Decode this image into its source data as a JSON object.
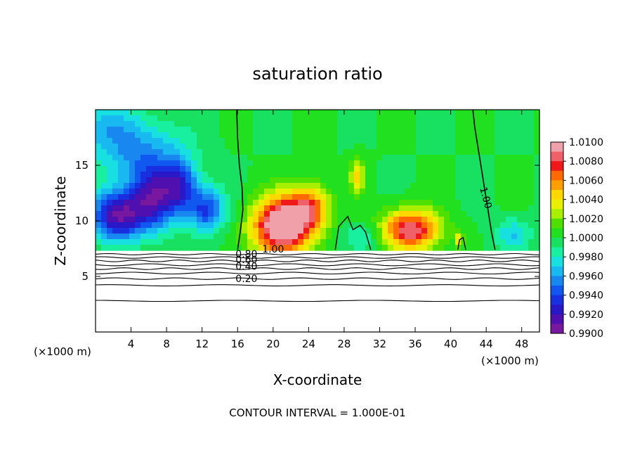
{
  "chart_data": {
    "type": "heatmap",
    "title": "saturation ratio",
    "xlabel": "X-coordinate",
    "ylabel": "Z-coordinate",
    "x_unit_label_left": "(×1000 m)",
    "x_unit_label_right": "(×1000 m)",
    "xlim": [
      0,
      50
    ],
    "ylim": [
      0,
      20
    ],
    "x_ticks": [
      4,
      8,
      12,
      16,
      20,
      24,
      28,
      32,
      36,
      40,
      44,
      48
    ],
    "y_ticks": [
      5,
      10,
      15
    ],
    "colorbar": {
      "levels": [
        "1.0100",
        "1.0080",
        "1.0060",
        "1.0040",
        "1.0020",
        "1.0000",
        "0.9980",
        "0.9960",
        "0.9940",
        "0.9920",
        "0.9900"
      ],
      "colors": [
        "#F0A0A8",
        "#F06068",
        "#F01818",
        "#FF6A00",
        "#FFA000",
        "#FFD800",
        "#E8F000",
        "#A8F000",
        "#50E000",
        "#20E020",
        "#18E060",
        "#18F0A0",
        "#18E0E0",
        "#18B8F0",
        "#1888F0",
        "#1058F0",
        "#1830E0",
        "#2818C8",
        "#5010B0",
        "#7818A0"
      ],
      "vmin": 0.99,
      "vmax": 1.01
    },
    "terrain_top_z": 7.2,
    "contour_line_labels": [
      "1.00",
      "0.80",
      "0.60",
      "0.40",
      "0.20",
      "1.00"
    ],
    "contour_interval_text": "CONTOUR INTERVAL = 1.000E-01",
    "anomalies": [
      {
        "x": 2.5,
        "z": 10.5,
        "sx": 3.0,
        "sz": 2.2,
        "amp": -0.009
      },
      {
        "x": 6.5,
        "z": 12.0,
        "sx": 2.5,
        "sz": 2.8,
        "amp": -0.007
      },
      {
        "x": 9.5,
        "z": 13.0,
        "sx": 2.0,
        "sz": 2.5,
        "amp": -0.006
      },
      {
        "x": 12.5,
        "z": 11.0,
        "sx": 2.0,
        "sz": 2.0,
        "amp": -0.006
      },
      {
        "x": 5.0,
        "z": 16.0,
        "sx": 5.0,
        "sz": 3.0,
        "amp": -0.004
      },
      {
        "x": 1.0,
        "z": 18.5,
        "sx": 4.0,
        "sz": 2.0,
        "amp": -0.0025
      },
      {
        "x": 21.0,
        "z": 9.5,
        "sx": 3.2,
        "sz": 2.6,
        "amp": 0.012
      },
      {
        "x": 24.2,
        "z": 11.2,
        "sx": 2.2,
        "sz": 2.0,
        "amp": 0.006
      },
      {
        "x": 29.5,
        "z": 14.0,
        "sx": 0.9,
        "sz": 1.6,
        "amp": 0.004
      },
      {
        "x": 35.5,
        "z": 9.2,
        "sx": 3.2,
        "sz": 1.8,
        "amp": 0.009
      },
      {
        "x": 30.0,
        "z": 8.5,
        "sx": 2.2,
        "sz": 1.2,
        "amp": -0.002
      },
      {
        "x": 47.0,
        "z": 8.8,
        "sx": 2.0,
        "sz": 1.4,
        "amp": -0.003
      },
      {
        "x": 41.0,
        "z": 8.4,
        "sx": 0.5,
        "sz": 0.7,
        "amp": 0.004
      }
    ]
  }
}
